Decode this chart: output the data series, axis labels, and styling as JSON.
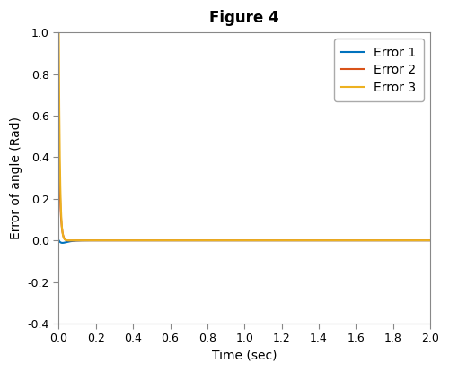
{
  "title": "Figure 4",
  "xlabel": "Time (sec)",
  "ylabel": "Error of angle (Rad)",
  "xlim": [
    0,
    2
  ],
  "ylim": [
    -0.4,
    1.0
  ],
  "xticks": [
    0,
    0.2,
    0.4,
    0.6,
    0.8,
    1.0,
    1.2,
    1.4,
    1.6,
    1.8,
    2.0
  ],
  "yticks": [
    -0.4,
    -0.2,
    0,
    0.2,
    0.4,
    0.6,
    0.8,
    1.0
  ],
  "series": [
    {
      "label": "Error 1",
      "color": "#0072BD",
      "spike_amp": 0.0,
      "spike_k": 80,
      "dip_amp": 1.63,
      "dip_k": 50,
      "recover_k": 2.5
    },
    {
      "label": "Error 2",
      "color": "#D95319",
      "spike_amp": 0.5,
      "spike_k": 120,
      "dip_amp": 1.25,
      "dip_k": 70,
      "recover_k": 4.0
    },
    {
      "label": "Error 3",
      "color": "#EDB120",
      "spike_amp": 1.0,
      "spike_k": 160,
      "dip_amp": 1.05,
      "dip_k": 100,
      "recover_k": 7.0
    }
  ],
  "legend_loc": "upper right",
  "background_color": "#ffffff",
  "title_fontsize": 12,
  "label_fontsize": 10,
  "tick_fontsize": 9,
  "linewidth": 1.5
}
